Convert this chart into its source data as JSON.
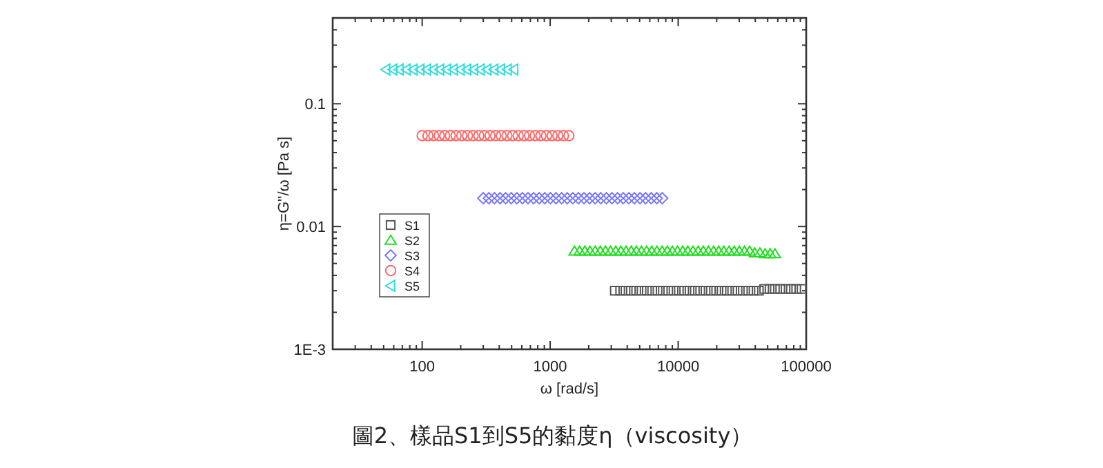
{
  "chart_data": {
    "type": "scatter",
    "xlabel": "ω [rad/s]",
    "ylabel": "η=G''/ω [Pa s]",
    "log": "xy",
    "xlim": [
      20,
      100000
    ],
    "ylim": [
      0.001,
      0.5
    ],
    "xticks": [
      100,
      1000,
      10000,
      100000
    ],
    "yticks": [
      {
        "value": 0.001,
        "label": "1E-3"
      },
      0.01,
      0.1
    ],
    "legend": "left",
    "series": [
      {
        "name": "S1",
        "color": "#555555",
        "marker": "square",
        "x": [
          3200,
          3522,
          3877,
          4268,
          4697,
          5170,
          5691,
          6264,
          6895,
          7590,
          8354,
          9196,
          10122,
          11141,
          12263,
          13498,
          14858,
          16354,
          18001,
          19814,
          21810,
          24007,
          26425,
          29086,
          32016,
          35240,
          38790,
          42697,
          46997,
          51730,
          56940,
          62675,
          68987,
          75935,
          83582,
          92000
        ],
        "values": [
          0.003,
          0.003,
          0.003,
          0.003,
          0.003,
          0.003,
          0.003,
          0.003,
          0.003,
          0.003,
          0.003,
          0.003,
          0.003,
          0.003,
          0.003,
          0.003,
          0.003,
          0.003,
          0.003,
          0.003,
          0.003,
          0.003,
          0.003,
          0.003,
          0.003,
          0.003,
          0.003,
          0.003,
          0.0031,
          0.0031,
          0.0031,
          0.0031,
          0.0031,
          0.0031,
          0.0031,
          0.0031
        ]
      },
      {
        "name": "S2",
        "color": "#22dd22",
        "marker": "triangle",
        "x": [
          1550,
          1700,
          1865,
          2046,
          2245,
          2463,
          2702,
          2964,
          3252,
          3567,
          3913,
          4293,
          4710,
          5167,
          5668,
          6218,
          6822,
          7484,
          8210,
          9007,
          9881,
          10840,
          11892,
          13046,
          14312,
          15701,
          17225,
          18896,
          20730,
          22741,
          24947,
          27368,
          30024,
          32937,
          36133,
          39640,
          43487,
          47706,
          52336,
          57000
        ],
        "values": [
          0.0063,
          0.0063,
          0.0063,
          0.0063,
          0.0063,
          0.0063,
          0.0063,
          0.0063,
          0.0063,
          0.0063,
          0.0063,
          0.0063,
          0.0063,
          0.0063,
          0.0063,
          0.0063,
          0.0063,
          0.0063,
          0.0063,
          0.0063,
          0.0063,
          0.0063,
          0.0063,
          0.0063,
          0.0063,
          0.0063,
          0.0063,
          0.0063,
          0.0063,
          0.0063,
          0.0063,
          0.0063,
          0.0063,
          0.0063,
          0.0063,
          0.0061,
          0.0061,
          0.006,
          0.006,
          0.006
        ]
      },
      {
        "name": "S3",
        "color": "#7777ff",
        "marker": "diamond",
        "x": [
          300,
          332,
          367,
          406,
          449,
          496,
          549,
          607,
          671,
          742,
          821,
          908,
          1004,
          1110,
          1228,
          1358,
          1502,
          1661,
          1837,
          2032,
          2247,
          2485,
          2749,
          3040,
          3362,
          3719,
          4113,
          4549,
          5031,
          5564,
          6154,
          6806,
          7500
        ],
        "values": [
          0.017,
          0.017,
          0.017,
          0.017,
          0.017,
          0.017,
          0.017,
          0.017,
          0.017,
          0.017,
          0.017,
          0.017,
          0.017,
          0.017,
          0.017,
          0.017,
          0.017,
          0.017,
          0.017,
          0.017,
          0.017,
          0.017,
          0.017,
          0.017,
          0.017,
          0.017,
          0.017,
          0.017,
          0.017,
          0.017,
          0.017,
          0.017,
          0.017
        ]
      },
      {
        "name": "S4",
        "color": "#ff6666",
        "marker": "circle",
        "x": [
          100,
          111,
          123,
          136,
          150,
          166,
          184,
          204,
          226,
          250,
          277,
          306,
          339,
          375,
          415,
          460,
          509,
          563,
          624,
          690,
          764,
          846,
          936,
          1036,
          1147,
          1270,
          1400
        ],
        "values": [
          0.055,
          0.055,
          0.055,
          0.055,
          0.055,
          0.055,
          0.055,
          0.055,
          0.055,
          0.055,
          0.055,
          0.055,
          0.055,
          0.055,
          0.055,
          0.055,
          0.055,
          0.055,
          0.055,
          0.055,
          0.055,
          0.055,
          0.055,
          0.055,
          0.055,
          0.055,
          0.055
        ]
      },
      {
        "name": "S5",
        "color": "#33dddd",
        "marker": "triangle-left",
        "x": [
          52,
          59,
          66,
          75,
          85,
          96,
          108,
          122,
          137,
          155,
          175,
          198,
          223,
          252,
          284,
          321,
          363,
          409,
          462,
          520
        ],
        "values": [
          0.19,
          0.19,
          0.19,
          0.19,
          0.19,
          0.19,
          0.19,
          0.19,
          0.19,
          0.19,
          0.19,
          0.19,
          0.19,
          0.19,
          0.19,
          0.19,
          0.19,
          0.19,
          0.19,
          0.19
        ]
      }
    ],
    "annotations": [
      "圖2、樣品S1到S5的黏度η（viscosity）"
    ]
  }
}
